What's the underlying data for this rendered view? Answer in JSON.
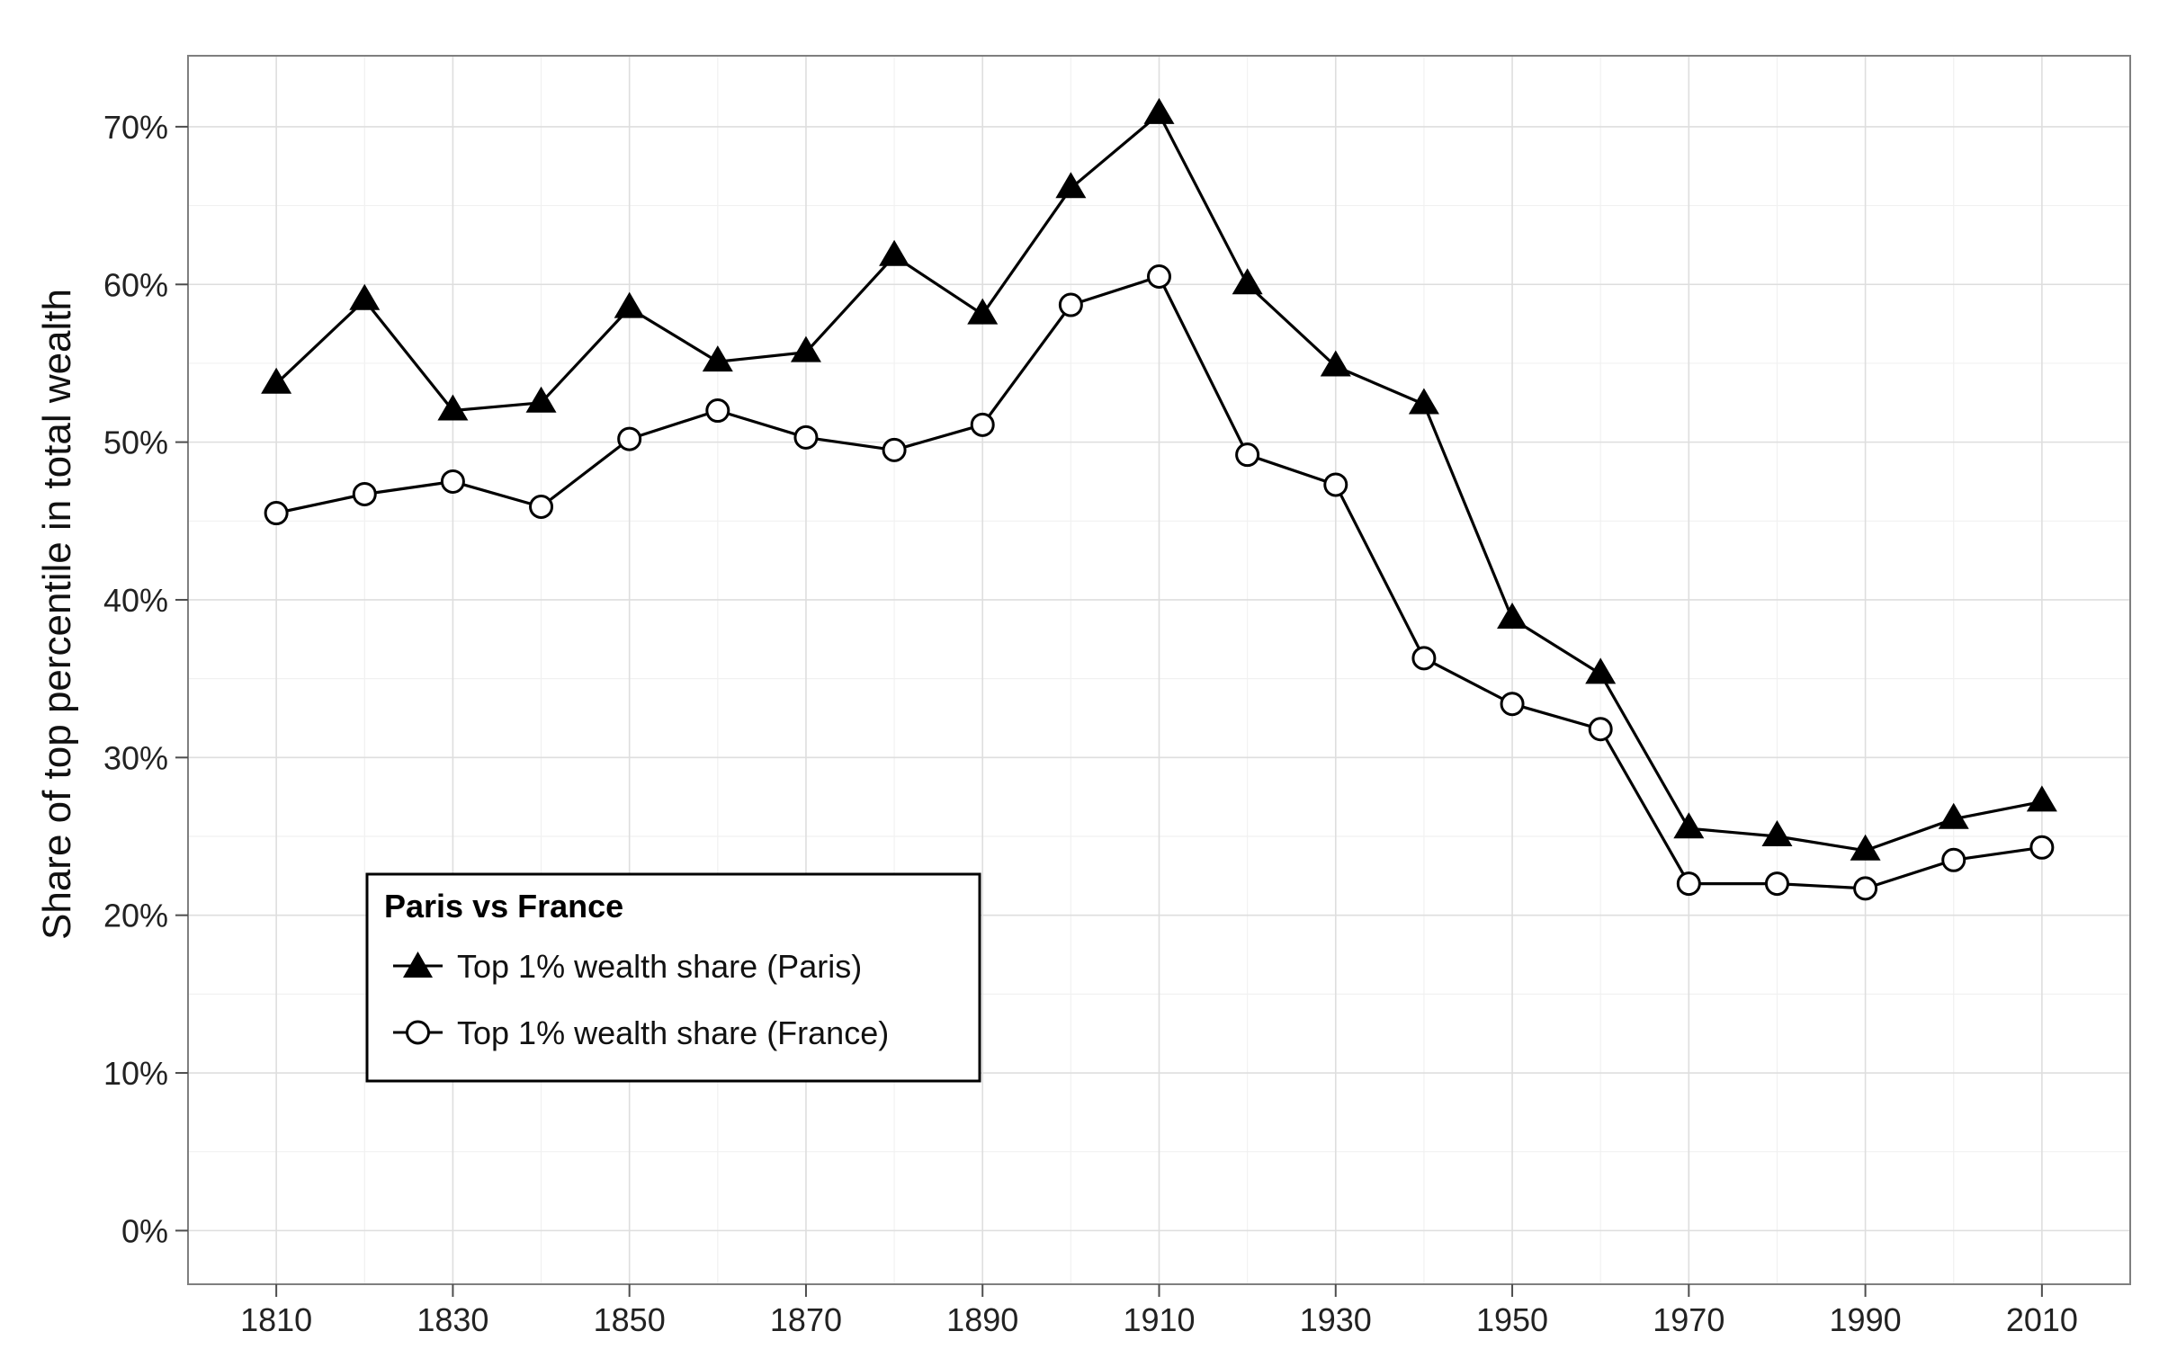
{
  "chart_data": {
    "type": "line",
    "title": "",
    "xlabel": "",
    "ylabel": "Share of top percentile in total wealth",
    "x": [
      1810,
      1820,
      1830,
      1840,
      1850,
      1860,
      1870,
      1880,
      1890,
      1900,
      1910,
      1920,
      1930,
      1940,
      1950,
      1960,
      1970,
      1980,
      1990,
      2000,
      2010
    ],
    "xlim": [
      1800,
      2020
    ],
    "x_ticks": [
      1810,
      1830,
      1850,
      1870,
      1890,
      1910,
      1930,
      1950,
      1970,
      1990,
      2010
    ],
    "x_tick_labels": [
      "1810",
      "1830",
      "1850",
      "1870",
      "1890",
      "1910",
      "1930",
      "1950",
      "1970",
      "1990",
      "2010"
    ],
    "ylim": [
      -0.034,
      0.745
    ],
    "y_ticks": [
      0,
      0.1,
      0.2,
      0.3,
      0.4,
      0.5,
      0.6,
      0.7
    ],
    "y_tick_labels": [
      "0%",
      "10%",
      "20%",
      "30%",
      "40%",
      "50%",
      "60%",
      "70%"
    ],
    "grid": true,
    "series": [
      {
        "name": "Top 1% wealth share (Paris)",
        "marker": "filled-triangle",
        "color": "#000000",
        "values": [
          0.537,
          0.59,
          0.52,
          0.525,
          0.585,
          0.551,
          0.557,
          0.618,
          0.581,
          0.661,
          0.708,
          0.6,
          0.548,
          0.524,
          0.388,
          0.353,
          0.255,
          0.25,
          0.241,
          0.261,
          0.272
        ]
      },
      {
        "name": "Top 1% wealth share (France)",
        "marker": "open-circle",
        "color": "#000000",
        "values": [
          0.455,
          0.467,
          0.475,
          0.459,
          0.502,
          0.52,
          0.503,
          0.495,
          0.511,
          0.587,
          0.605,
          0.492,
          0.473,
          0.363,
          0.334,
          0.318,
          0.22,
          0.22,
          0.217,
          0.235,
          0.243
        ]
      }
    ],
    "legend": {
      "title": "Paris vs France",
      "placement": "lower-left, inside plot",
      "entries": [
        "Top 1% wealth share (Paris)",
        "Top 1% wealth share (France)"
      ]
    }
  }
}
